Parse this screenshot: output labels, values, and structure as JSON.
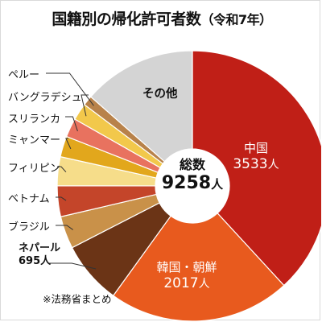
{
  "title": "国籍別の帰化許可者数",
  "subtitle": "（令和7年）",
  "source": "※法務省まとめ",
  "center": {
    "caption": "総数",
    "total": "9258",
    "unit": "人"
  },
  "colors": {
    "china": "#c01f17",
    "korea": "#e85a1e",
    "nepal": "#6b3416",
    "brazil": "#c99149",
    "vietnam": "#c4452a",
    "philippines": "#f6dd8a",
    "myanmar": "#e2a71c",
    "srilanka": "#e8725f",
    "bangladesh": "#f2c84b",
    "peru": "#b8824a",
    "other": "#d4d4d4"
  },
  "chart_data": {
    "type": "pie",
    "style": "donut",
    "total": 9258,
    "unit": "人",
    "slices": [
      {
        "key": "china",
        "name": "中国",
        "value": 3533,
        "value_label": "3533"
      },
      {
        "key": "korea",
        "name": "韓国・朝鮮",
        "value": 2017,
        "value_label": "2017"
      },
      {
        "key": "nepal",
        "name": "ネパール",
        "value": 695,
        "value_label": "695"
      },
      {
        "key": "brazil",
        "name": "ブラジル",
        "value": 360
      },
      {
        "key": "vietnam",
        "name": "ベトナム",
        "value": 340
      },
      {
        "key": "philippines",
        "name": "フィリピン",
        "value": 320
      },
      {
        "key": "myanmar",
        "name": "ミャンマー",
        "value": 230
      },
      {
        "key": "srilanka",
        "name": "スリランカ",
        "value": 210
      },
      {
        "key": "bangladesh",
        "name": "バングラデシュ",
        "value": 190
      },
      {
        "key": "peru",
        "name": "ペルー",
        "value": 110
      },
      {
        "key": "other",
        "name": "その他",
        "value": 1253
      }
    ]
  }
}
